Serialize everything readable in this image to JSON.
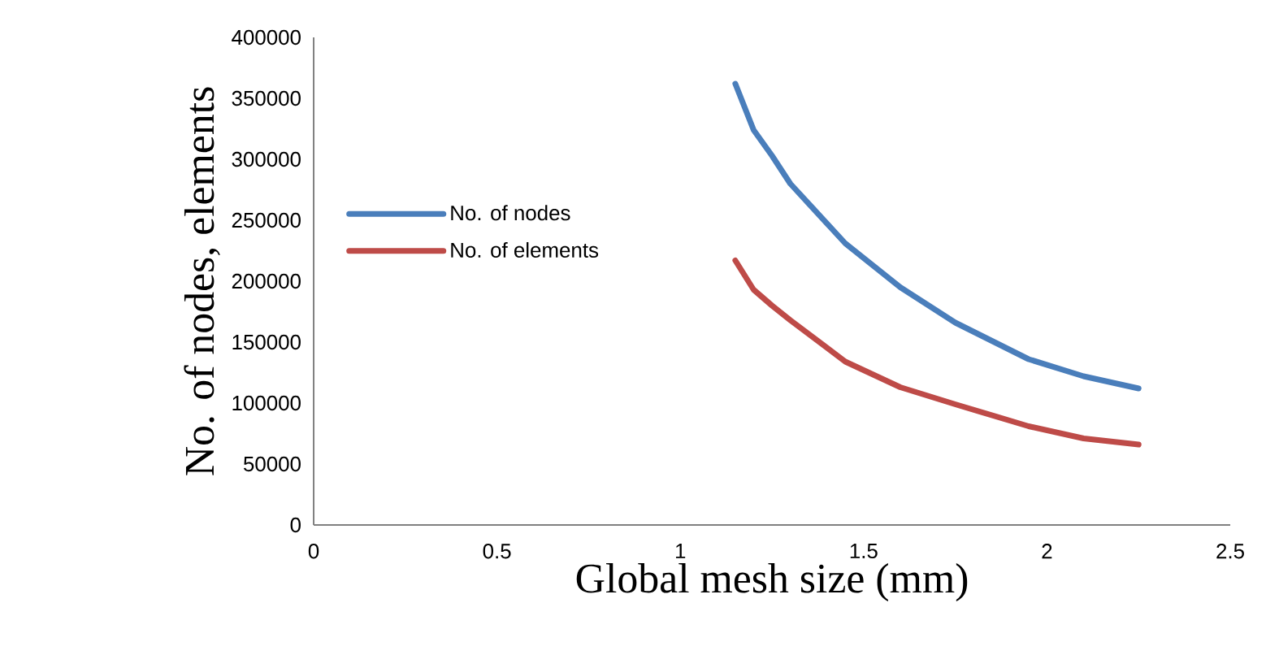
{
  "chart_data": {
    "type": "line",
    "xlabel": "Global mesh size (mm)",
    "ylabel": "No. of nodes, elements",
    "xlim": [
      0,
      2.5
    ],
    "xticks": [
      0,
      0.5,
      1,
      1.5,
      2,
      2.5
    ],
    "ylim": [
      0,
      400000
    ],
    "yticks": [
      0,
      50000,
      100000,
      150000,
      200000,
      250000,
      300000,
      350000,
      400000
    ],
    "grid": false,
    "legend": "left",
    "marker": "none",
    "line_style": "solid",
    "series": [
      {
        "name": "No. of nodes",
        "color": "#4a7ebb",
        "x": [
          1.15,
          1.2,
          1.25,
          1.3,
          1.45,
          1.6,
          1.75,
          1.95,
          2.1,
          2.25
        ],
        "values": [
          362000,
          324000,
          303000,
          280000,
          231000,
          195000,
          166000,
          136000,
          122000,
          112000
        ]
      },
      {
        "name": "No. of elements",
        "color": "#be4b48",
        "x": [
          1.15,
          1.2,
          1.25,
          1.3,
          1.45,
          1.6,
          1.75,
          1.95,
          2.1,
          2.25
        ],
        "values": [
          217000,
          193000,
          180000,
          168000,
          134000,
          113000,
          99000,
          81000,
          71000,
          66000
        ]
      }
    ]
  }
}
